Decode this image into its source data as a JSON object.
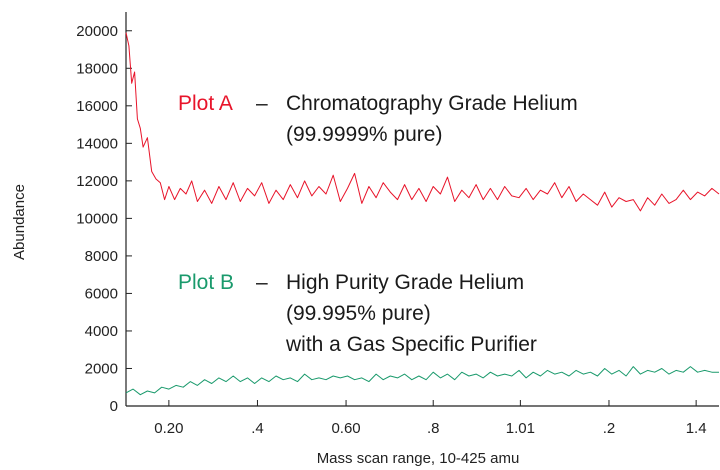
{
  "chart_data": {
    "type": "line",
    "title": "",
    "xlabel": "Mass scan range, 10-425 amu",
    "ylabel": "Abundance",
    "ylim": [
      0,
      21000
    ],
    "yticks": [
      0,
      2000,
      4000,
      6000,
      8000,
      10000,
      12000,
      14000,
      16000,
      18000,
      20000
    ],
    "xlim": [
      10,
      425
    ],
    "x_tick_positions": [
      40,
      102,
      164,
      225,
      286,
      348,
      409
    ],
    "x_tick_labels": [
      "0.20",
      ".4",
      "0.60",
      ".8",
      "1.01",
      ".2",
      "1.4"
    ],
    "grid": false,
    "series": [
      {
        "name": "Plot A",
        "color": "#e8142a",
        "x": [
          10,
          12,
          14,
          16,
          18,
          20,
          22,
          25,
          28,
          31,
          34,
          37,
          40,
          44,
          48,
          52,
          56,
          60,
          65,
          70,
          75,
          80,
          85,
          90,
          95,
          100,
          105,
          110,
          115,
          120,
          125,
          130,
          135,
          140,
          145,
          150,
          155,
          160,
          165,
          170,
          175,
          180,
          185,
          190,
          195,
          200,
          205,
          210,
          215,
          220,
          225,
          230,
          235,
          240,
          245,
          250,
          255,
          260,
          265,
          270,
          275,
          280,
          285,
          290,
          295,
          300,
          305,
          310,
          315,
          320,
          325,
          330,
          335,
          340,
          345,
          350,
          355,
          360,
          365,
          370,
          375,
          380,
          385,
          390,
          395,
          400,
          405,
          410,
          415,
          420,
          425
        ],
        "y": [
          19900,
          19200,
          17200,
          17800,
          15300,
          14800,
          13800,
          14300,
          12500,
          12100,
          11900,
          11000,
          11700,
          11000,
          11600,
          11300,
          12000,
          10900,
          11500,
          10800,
          11700,
          11000,
          11900,
          10900,
          11600,
          11200,
          11900,
          10800,
          11500,
          11000,
          11800,
          11100,
          12000,
          11200,
          11700,
          11300,
          12300,
          10900,
          11600,
          12400,
          10800,
          11700,
          11100,
          11900,
          11400,
          11000,
          11800,
          11000,
          11600,
          10900,
          11700,
          11300,
          12200,
          10900,
          11500,
          11100,
          11800,
          11000,
          11600,
          11000,
          11700,
          11200,
          11100,
          11600,
          11000,
          11500,
          11300,
          11900,
          11100,
          11700,
          10900,
          11300,
          11000,
          10700,
          11400,
          10600,
          11100,
          10900,
          11000,
          10400,
          11100,
          10700,
          11300,
          10800,
          11000,
          11500,
          11000,
          11400,
          11200,
          11600,
          11300
        ]
      },
      {
        "name": "Plot B",
        "color": "#1a9a6c",
        "x": [
          10,
          15,
          20,
          25,
          30,
          35,
          40,
          45,
          50,
          55,
          60,
          65,
          70,
          75,
          80,
          85,
          90,
          95,
          100,
          105,
          110,
          115,
          120,
          125,
          130,
          135,
          140,
          145,
          150,
          155,
          160,
          165,
          170,
          175,
          180,
          185,
          190,
          195,
          200,
          205,
          210,
          215,
          220,
          225,
          230,
          235,
          240,
          245,
          250,
          255,
          260,
          265,
          270,
          275,
          280,
          285,
          290,
          295,
          300,
          305,
          310,
          315,
          320,
          325,
          330,
          335,
          340,
          345,
          350,
          355,
          360,
          365,
          370,
          375,
          380,
          385,
          390,
          395,
          400,
          405,
          410,
          415,
          420,
          425
        ],
        "y": [
          700,
          900,
          600,
          800,
          700,
          1000,
          900,
          1100,
          1000,
          1300,
          1100,
          1400,
          1200,
          1500,
          1300,
          1600,
          1300,
          1500,
          1200,
          1500,
          1300,
          1600,
          1400,
          1500,
          1300,
          1700,
          1400,
          1500,
          1400,
          1600,
          1500,
          1600,
          1400,
          1500,
          1300,
          1700,
          1400,
          1600,
          1500,
          1700,
          1400,
          1600,
          1400,
          1800,
          1500,
          1700,
          1400,
          1800,
          1600,
          1700,
          1500,
          1800,
          1600,
          1700,
          1600,
          1900,
          1500,
          1800,
          1600,
          1900,
          1700,
          1800,
          1600,
          1900,
          1700,
          1800,
          1600,
          2000,
          1700,
          1900,
          1600,
          2100,
          1700,
          1900,
          1800,
          2000,
          1700,
          1900,
          1800,
          2100,
          1800,
          1900,
          1800,
          1800
        ]
      }
    ],
    "annotations": {
      "plot_a_label": "Plot A",
      "plot_a_dash": "–",
      "plot_a_line1": "Chromatography Grade Helium",
      "plot_a_line2": "(99.9999% pure)",
      "plot_b_label": "Plot B",
      "plot_b_dash": "–",
      "plot_b_line1": "High Purity Grade Helium",
      "plot_b_line2": "(99.995% pure)",
      "plot_b_line3": "with a Gas Specific Purifier"
    }
  }
}
